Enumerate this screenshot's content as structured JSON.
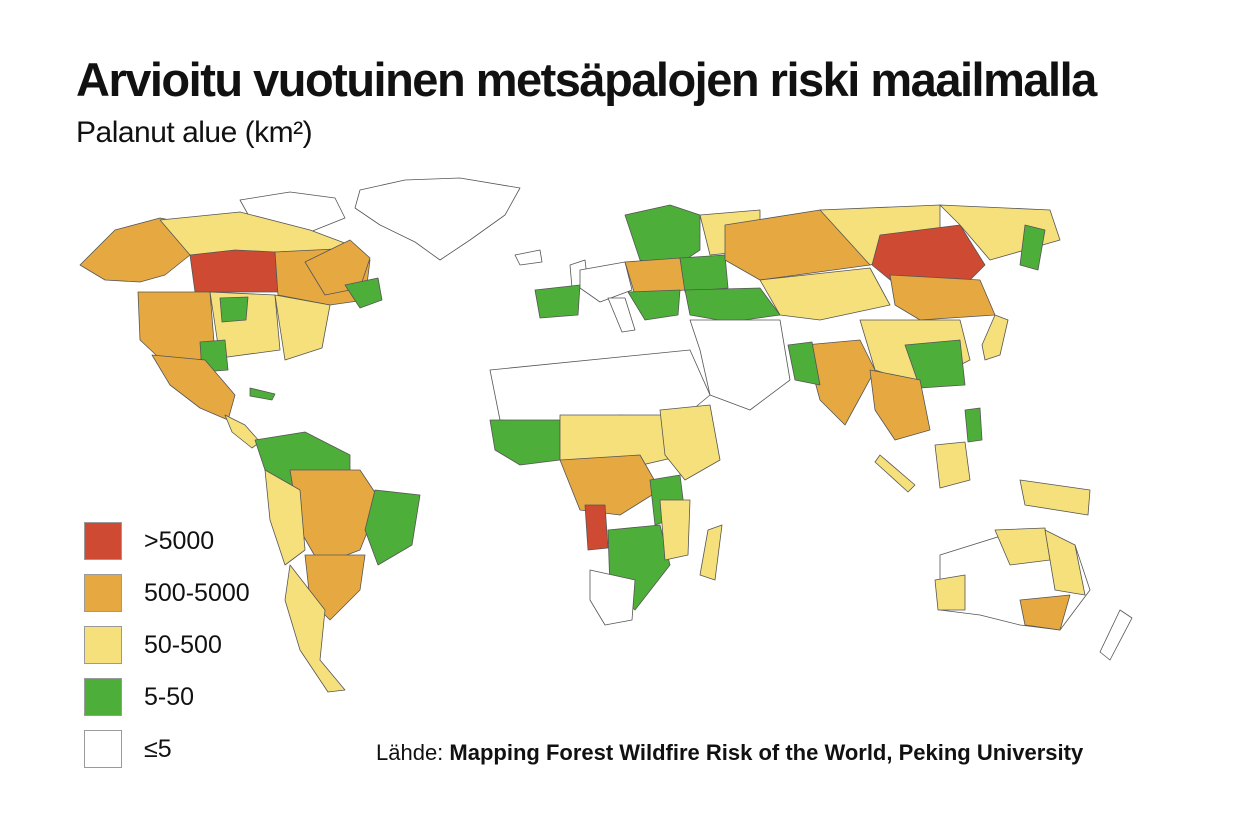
{
  "title": "Arvioitu vuotuinen metsäpalojen riski maailmalla",
  "subtitle": "Palanut alue (km²)",
  "legend": [
    {
      "label": ">5000",
      "color": "#cf4a32"
    },
    {
      "label": "500-5000",
      "color": "#e6a942"
    },
    {
      "label": "50-500",
      "color": "#f6e07c"
    },
    {
      "label": "5-50",
      "color": "#4eae3a"
    },
    {
      "label": "≤5",
      "color": "#ffffff"
    }
  ],
  "source": {
    "prefix": "Lähde: ",
    "organization": "Mapping Forest Wildfire Risk of the World, Peking University"
  }
}
